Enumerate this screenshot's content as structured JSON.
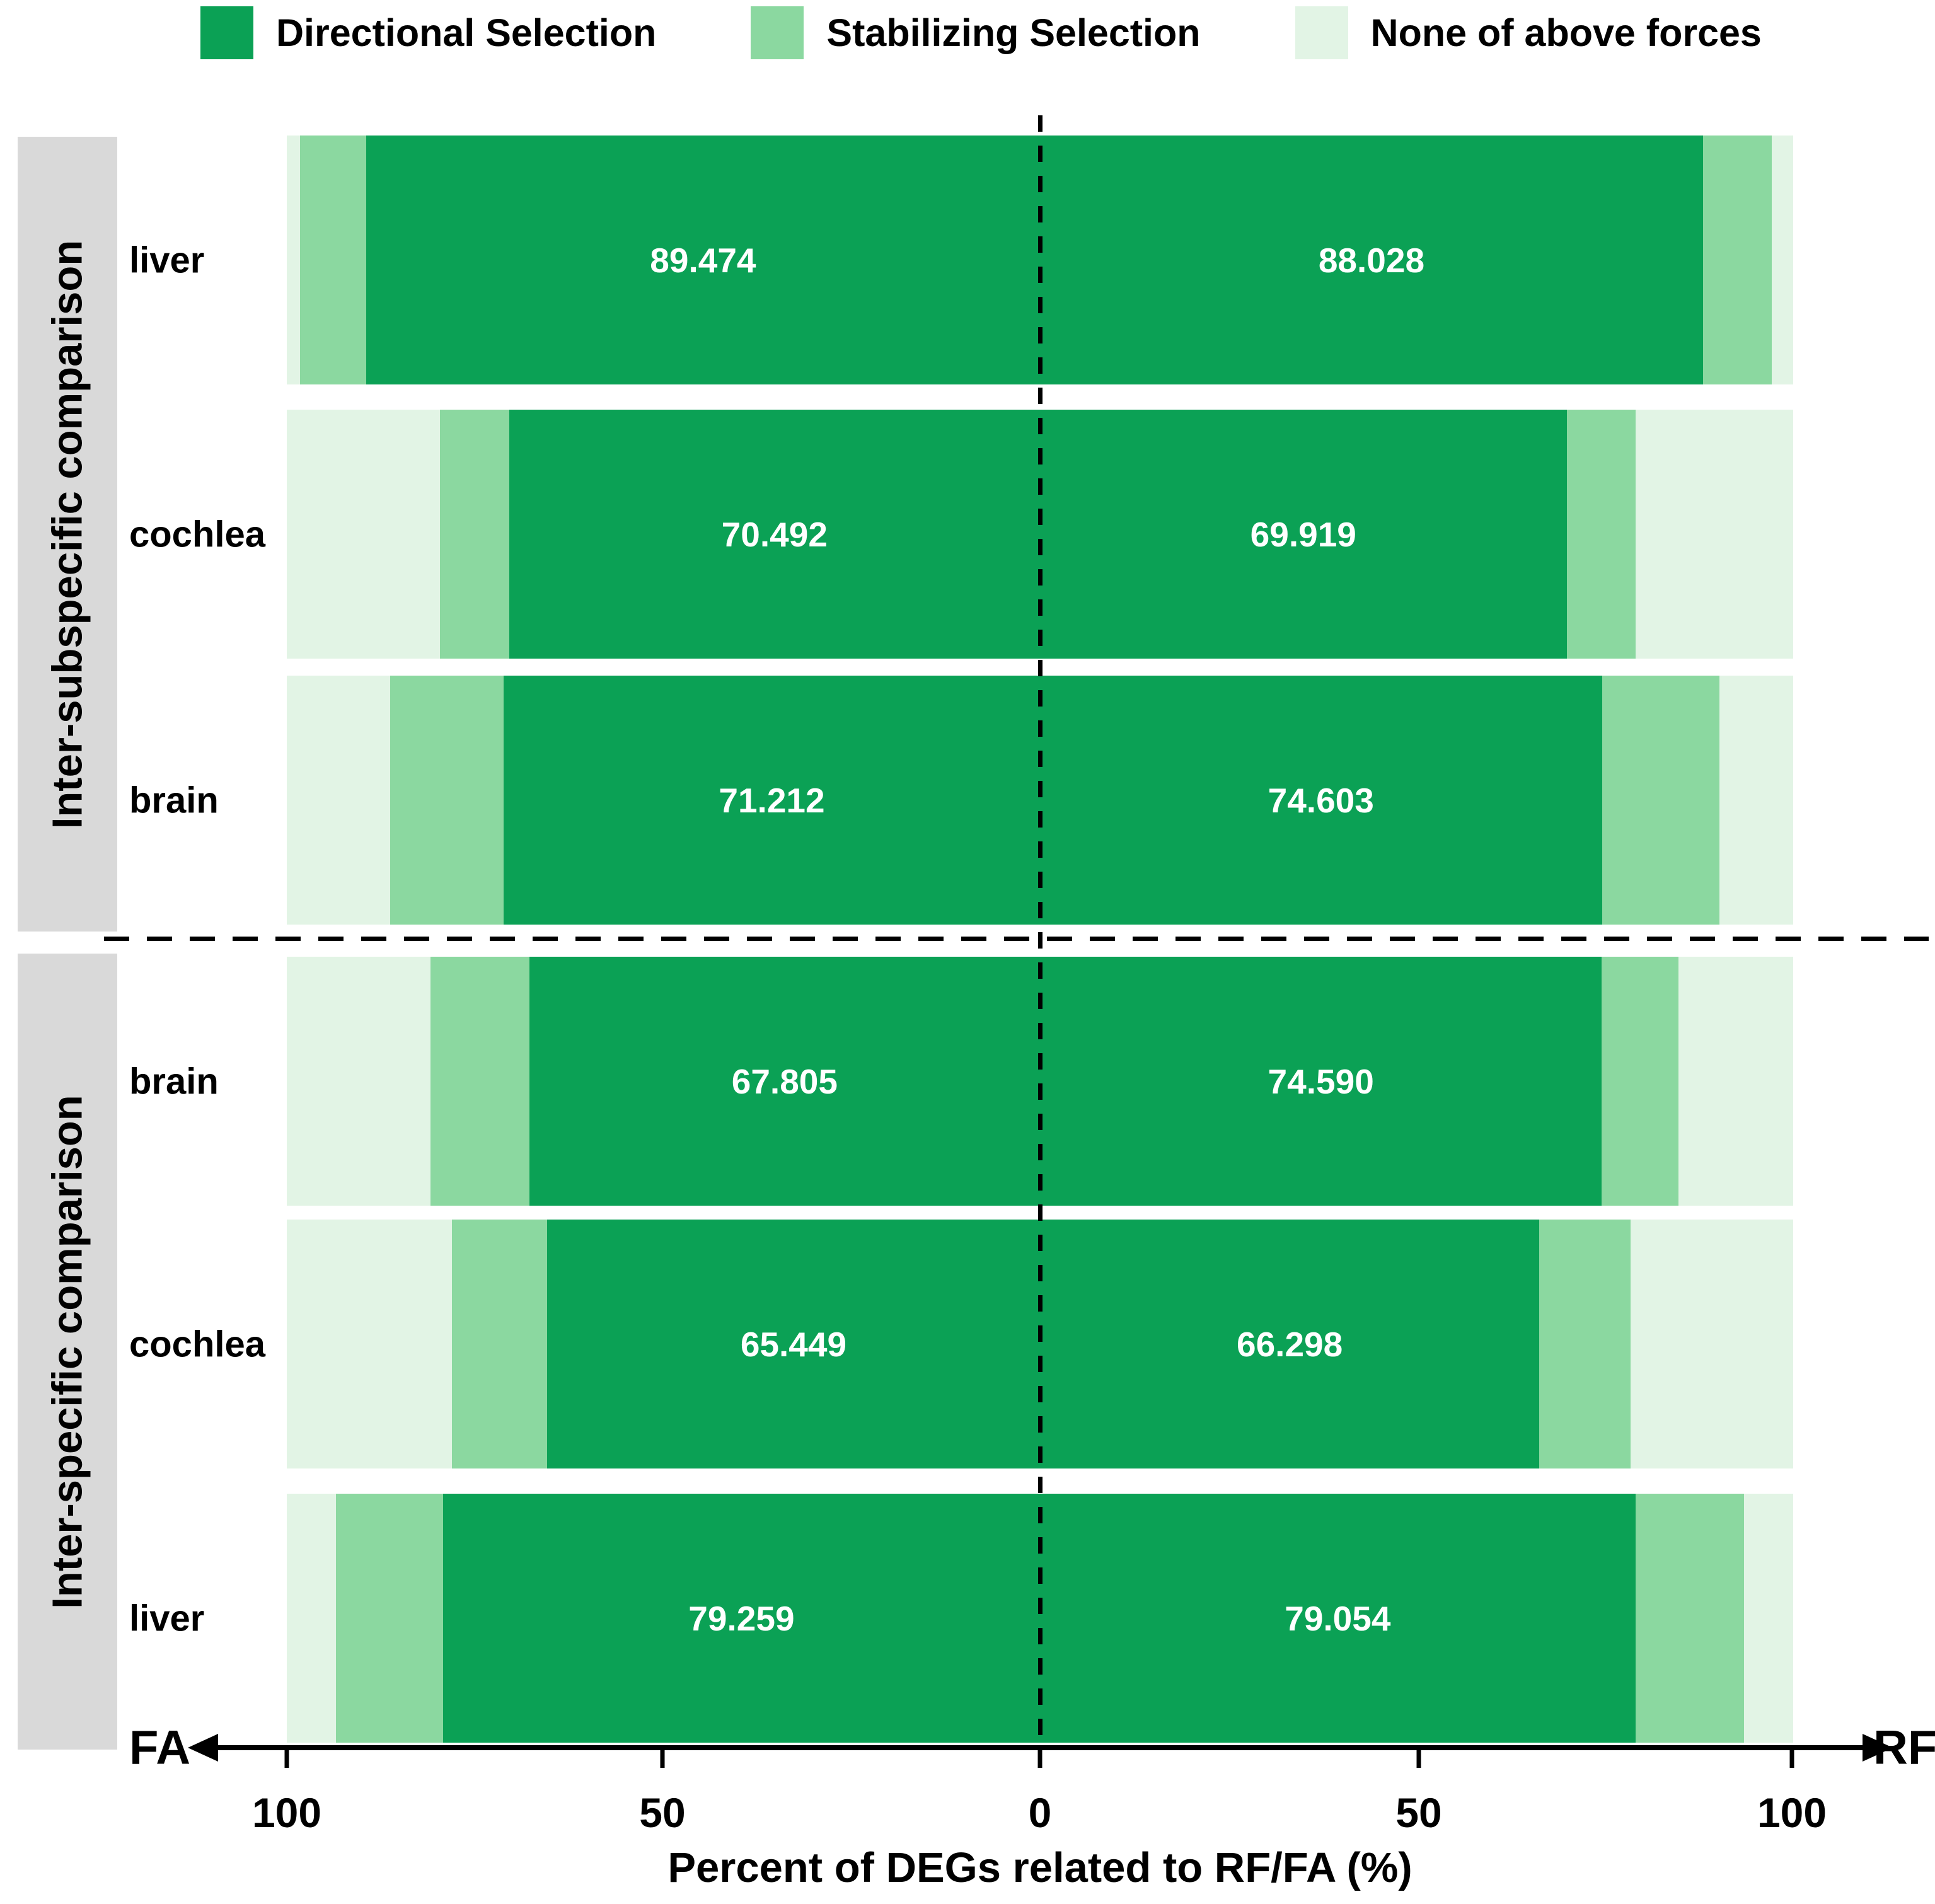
{
  "chart_data": {
    "type": "bar",
    "variant": "diverging-stacked-horizontal",
    "xlabel": "Percent of DEGs related to RF/FA (%)",
    "axis": {
      "left_label": "FA",
      "right_label": "RF",
      "ticks": [
        "100",
        "50",
        "0",
        "50",
        "100"
      ],
      "range_each_side": [
        0,
        100
      ],
      "grid": false
    },
    "legend": [
      "Directional Selection",
      "Stabilizing Selection",
      "None of above forces"
    ],
    "legend_position": "top",
    "colors": {
      "directional": "#0ba155",
      "stabilizing": "#8bd8a0",
      "none": "#e2f4e5",
      "band_gray": "#d9d9d9",
      "value_text": "#ffffff"
    },
    "groups": [
      {
        "label": "Inter-subspecific comparison",
        "rows": [
          {
            "tissue": "liver",
            "fa": {
              "directional": 89.474,
              "stabilizing": 8.8,
              "none": 1.726,
              "label": "89.474"
            },
            "rf": {
              "directional": 88.028,
              "stabilizing": 9.1,
              "none": 2.872,
              "label": "88.028"
            }
          },
          {
            "tissue": "cochlea",
            "fa": {
              "directional": 70.492,
              "stabilizing": 9.2,
              "none": 20.308,
              "label": "70.492"
            },
            "rf": {
              "directional": 69.919,
              "stabilizing": 9.2,
              "none": 20.881,
              "label": "69.919"
            }
          },
          {
            "tissue": "brain",
            "fa": {
              "directional": 71.212,
              "stabilizing": 15.1,
              "none": 13.688,
              "label": "71.212"
            },
            "rf": {
              "directional": 74.603,
              "stabilizing": 15.6,
              "none": 9.797,
              "label": "74.603"
            }
          }
        ]
      },
      {
        "label": "Inter-specific comparison",
        "rows": [
          {
            "tissue": "brain",
            "fa": {
              "directional": 67.805,
              "stabilizing": 13.1,
              "none": 19.095,
              "label": "67.805"
            },
            "rf": {
              "directional": 74.59,
              "stabilizing": 10.2,
              "none": 15.21,
              "label": "74.590"
            }
          },
          {
            "tissue": "cochlea",
            "fa": {
              "directional": 65.449,
              "stabilizing": 12.6,
              "none": 21.951,
              "label": "65.449"
            },
            "rf": {
              "directional": 66.298,
              "stabilizing": 12.1,
              "none": 21.602,
              "label": "66.298"
            }
          },
          {
            "tissue": "liver",
            "fa": {
              "directional": 79.259,
              "stabilizing": 14.2,
              "none": 6.541,
              "label": "79.259"
            },
            "rf": {
              "directional": 79.054,
              "stabilizing": 14.4,
              "none": 6.546,
              "label": "79.054"
            }
          }
        ]
      }
    ]
  }
}
